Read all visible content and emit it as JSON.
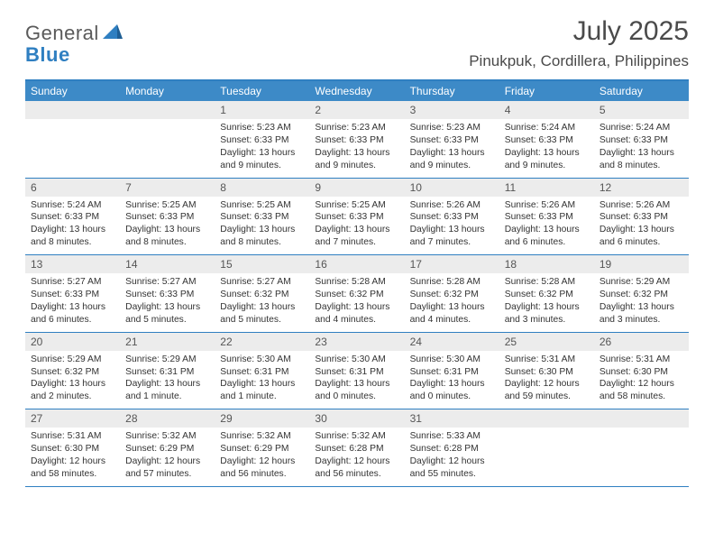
{
  "logo": {
    "general": "General",
    "blue": "Blue"
  },
  "title": "July 2025",
  "location": "Pinukpuk, Cordillera, Philippines",
  "days_of_week": [
    "Sunday",
    "Monday",
    "Tuesday",
    "Wednesday",
    "Thursday",
    "Friday",
    "Saturday"
  ],
  "colors": {
    "header_bg": "#3d8ac7",
    "border": "#2f7fc1",
    "cell_num_bg": "#ececec",
    "text": "#333333"
  },
  "weeks": [
    [
      {
        "n": "",
        "sunrise": "",
        "sunset": "",
        "daylight": ""
      },
      {
        "n": "",
        "sunrise": "",
        "sunset": "",
        "daylight": ""
      },
      {
        "n": "1",
        "sunrise": "Sunrise: 5:23 AM",
        "sunset": "Sunset: 6:33 PM",
        "daylight": "Daylight: 13 hours and 9 minutes."
      },
      {
        "n": "2",
        "sunrise": "Sunrise: 5:23 AM",
        "sunset": "Sunset: 6:33 PM",
        "daylight": "Daylight: 13 hours and 9 minutes."
      },
      {
        "n": "3",
        "sunrise": "Sunrise: 5:23 AM",
        "sunset": "Sunset: 6:33 PM",
        "daylight": "Daylight: 13 hours and 9 minutes."
      },
      {
        "n": "4",
        "sunrise": "Sunrise: 5:24 AM",
        "sunset": "Sunset: 6:33 PM",
        "daylight": "Daylight: 13 hours and 9 minutes."
      },
      {
        "n": "5",
        "sunrise": "Sunrise: 5:24 AM",
        "sunset": "Sunset: 6:33 PM",
        "daylight": "Daylight: 13 hours and 8 minutes."
      }
    ],
    [
      {
        "n": "6",
        "sunrise": "Sunrise: 5:24 AM",
        "sunset": "Sunset: 6:33 PM",
        "daylight": "Daylight: 13 hours and 8 minutes."
      },
      {
        "n": "7",
        "sunrise": "Sunrise: 5:25 AM",
        "sunset": "Sunset: 6:33 PM",
        "daylight": "Daylight: 13 hours and 8 minutes."
      },
      {
        "n": "8",
        "sunrise": "Sunrise: 5:25 AM",
        "sunset": "Sunset: 6:33 PM",
        "daylight": "Daylight: 13 hours and 8 minutes."
      },
      {
        "n": "9",
        "sunrise": "Sunrise: 5:25 AM",
        "sunset": "Sunset: 6:33 PM",
        "daylight": "Daylight: 13 hours and 7 minutes."
      },
      {
        "n": "10",
        "sunrise": "Sunrise: 5:26 AM",
        "sunset": "Sunset: 6:33 PM",
        "daylight": "Daylight: 13 hours and 7 minutes."
      },
      {
        "n": "11",
        "sunrise": "Sunrise: 5:26 AM",
        "sunset": "Sunset: 6:33 PM",
        "daylight": "Daylight: 13 hours and 6 minutes."
      },
      {
        "n": "12",
        "sunrise": "Sunrise: 5:26 AM",
        "sunset": "Sunset: 6:33 PM",
        "daylight": "Daylight: 13 hours and 6 minutes."
      }
    ],
    [
      {
        "n": "13",
        "sunrise": "Sunrise: 5:27 AM",
        "sunset": "Sunset: 6:33 PM",
        "daylight": "Daylight: 13 hours and 6 minutes."
      },
      {
        "n": "14",
        "sunrise": "Sunrise: 5:27 AM",
        "sunset": "Sunset: 6:33 PM",
        "daylight": "Daylight: 13 hours and 5 minutes."
      },
      {
        "n": "15",
        "sunrise": "Sunrise: 5:27 AM",
        "sunset": "Sunset: 6:32 PM",
        "daylight": "Daylight: 13 hours and 5 minutes."
      },
      {
        "n": "16",
        "sunrise": "Sunrise: 5:28 AM",
        "sunset": "Sunset: 6:32 PM",
        "daylight": "Daylight: 13 hours and 4 minutes."
      },
      {
        "n": "17",
        "sunrise": "Sunrise: 5:28 AM",
        "sunset": "Sunset: 6:32 PM",
        "daylight": "Daylight: 13 hours and 4 minutes."
      },
      {
        "n": "18",
        "sunrise": "Sunrise: 5:28 AM",
        "sunset": "Sunset: 6:32 PM",
        "daylight": "Daylight: 13 hours and 3 minutes."
      },
      {
        "n": "19",
        "sunrise": "Sunrise: 5:29 AM",
        "sunset": "Sunset: 6:32 PM",
        "daylight": "Daylight: 13 hours and 3 minutes."
      }
    ],
    [
      {
        "n": "20",
        "sunrise": "Sunrise: 5:29 AM",
        "sunset": "Sunset: 6:32 PM",
        "daylight": "Daylight: 13 hours and 2 minutes."
      },
      {
        "n": "21",
        "sunrise": "Sunrise: 5:29 AM",
        "sunset": "Sunset: 6:31 PM",
        "daylight": "Daylight: 13 hours and 1 minute."
      },
      {
        "n": "22",
        "sunrise": "Sunrise: 5:30 AM",
        "sunset": "Sunset: 6:31 PM",
        "daylight": "Daylight: 13 hours and 1 minute."
      },
      {
        "n": "23",
        "sunrise": "Sunrise: 5:30 AM",
        "sunset": "Sunset: 6:31 PM",
        "daylight": "Daylight: 13 hours and 0 minutes."
      },
      {
        "n": "24",
        "sunrise": "Sunrise: 5:30 AM",
        "sunset": "Sunset: 6:31 PM",
        "daylight": "Daylight: 13 hours and 0 minutes."
      },
      {
        "n": "25",
        "sunrise": "Sunrise: 5:31 AM",
        "sunset": "Sunset: 6:30 PM",
        "daylight": "Daylight: 12 hours and 59 minutes."
      },
      {
        "n": "26",
        "sunrise": "Sunrise: 5:31 AM",
        "sunset": "Sunset: 6:30 PM",
        "daylight": "Daylight: 12 hours and 58 minutes."
      }
    ],
    [
      {
        "n": "27",
        "sunrise": "Sunrise: 5:31 AM",
        "sunset": "Sunset: 6:30 PM",
        "daylight": "Daylight: 12 hours and 58 minutes."
      },
      {
        "n": "28",
        "sunrise": "Sunrise: 5:32 AM",
        "sunset": "Sunset: 6:29 PM",
        "daylight": "Daylight: 12 hours and 57 minutes."
      },
      {
        "n": "29",
        "sunrise": "Sunrise: 5:32 AM",
        "sunset": "Sunset: 6:29 PM",
        "daylight": "Daylight: 12 hours and 56 minutes."
      },
      {
        "n": "30",
        "sunrise": "Sunrise: 5:32 AM",
        "sunset": "Sunset: 6:28 PM",
        "daylight": "Daylight: 12 hours and 56 minutes."
      },
      {
        "n": "31",
        "sunrise": "Sunrise: 5:33 AM",
        "sunset": "Sunset: 6:28 PM",
        "daylight": "Daylight: 12 hours and 55 minutes."
      },
      {
        "n": "",
        "sunrise": "",
        "sunset": "",
        "daylight": ""
      },
      {
        "n": "",
        "sunrise": "",
        "sunset": "",
        "daylight": ""
      }
    ]
  ]
}
